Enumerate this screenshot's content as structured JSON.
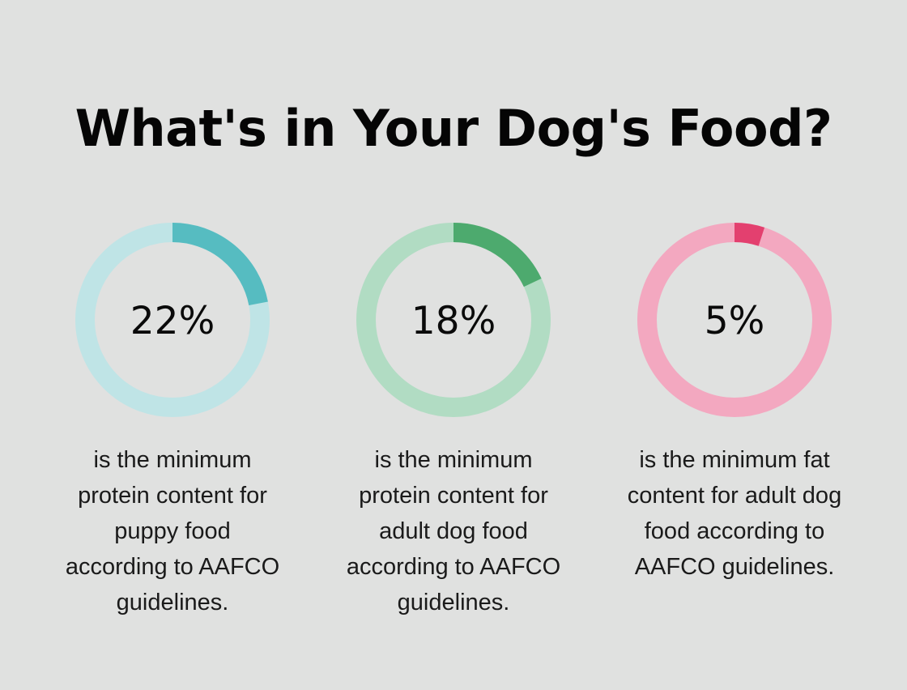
{
  "title": "What's in Your Dog's Food?",
  "chart_data": [
    {
      "type": "donut",
      "value": 22,
      "label": "22%",
      "caption_lines": [
        "is the minimum",
        "protein content for",
        "puppy food",
        "according to AAFCO",
        "guidelines."
      ],
      "colors": {
        "track": "#bfe4e6",
        "fill": "#56bcc1"
      }
    },
    {
      "type": "donut",
      "value": 18,
      "label": "18%",
      "caption_lines": [
        "is the minimum",
        "protein content for",
        "adult dog food",
        "according to AAFCO",
        "guidelines."
      ],
      "colors": {
        "track": "#b1dcc3",
        "fill": "#4daa6e"
      }
    },
    {
      "type": "donut",
      "value": 5,
      "label": "5%",
      "caption_lines": [
        "is the minimum fat",
        "content for adult dog",
        "food according to",
        "AAFCO guidelines."
      ],
      "colors": {
        "track": "#f3a8c0",
        "fill": "#e3406f"
      }
    }
  ]
}
